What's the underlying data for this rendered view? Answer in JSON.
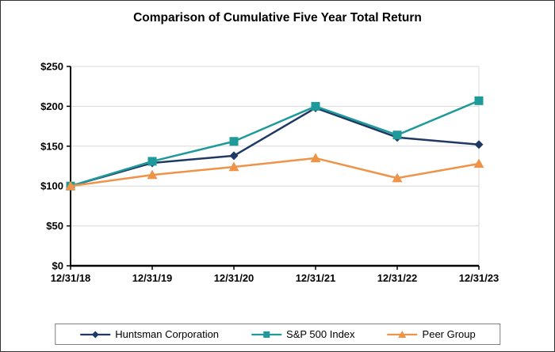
{
  "chart_data": {
    "type": "line",
    "title": "Comparison of Cumulative Five Year Total Return",
    "categories": [
      "12/31/18",
      "12/31/19",
      "12/31/20",
      "12/31/21",
      "12/31/22",
      "12/31/23"
    ],
    "series": [
      {
        "name": "Huntsman Corporation",
        "marker": "diamond",
        "color": "#1F3864",
        "values": [
          100,
          129,
          138,
          198,
          161,
          152
        ]
      },
      {
        "name": "S&P 500 Index",
        "marker": "square",
        "color": "#1F9A9A",
        "values": [
          100,
          131,
          156,
          200,
          164,
          207
        ]
      },
      {
        "name": "Peer Group",
        "marker": "triangle",
        "color": "#EF9349",
        "values": [
          100,
          114,
          124,
          135,
          110,
          128
        ]
      }
    ],
    "y_ticks": [
      {
        "value": 0,
        "label": "$0"
      },
      {
        "value": 50,
        "label": "$50"
      },
      {
        "value": 100,
        "label": "$100"
      },
      {
        "value": 150,
        "label": "$150"
      },
      {
        "value": 200,
        "label": "$200"
      },
      {
        "value": 250,
        "label": "$250"
      }
    ],
    "ylim": [
      0,
      250
    ],
    "xlabel": "",
    "ylabel": "",
    "grid": true,
    "legend_position": "bottom",
    "colors": {
      "gridline": "#D9D9D9",
      "axis": "#000000",
      "legend_border": "#7F7F7F"
    }
  }
}
